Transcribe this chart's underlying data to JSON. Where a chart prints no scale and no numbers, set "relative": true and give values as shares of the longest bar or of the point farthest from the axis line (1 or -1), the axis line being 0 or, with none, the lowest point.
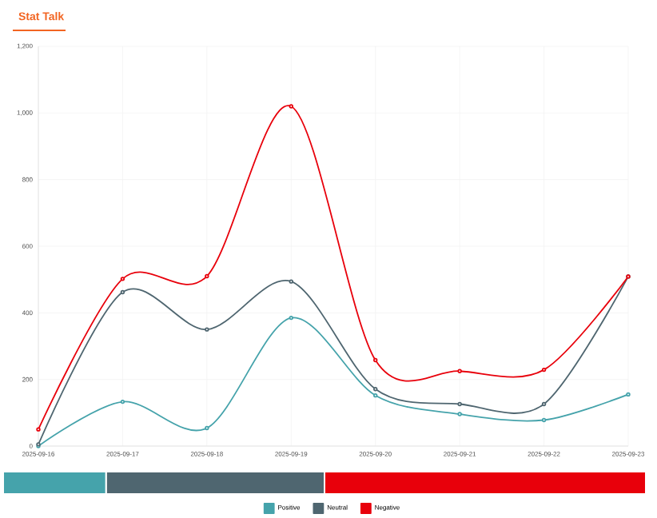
{
  "chart_data": [
    {
      "type": "line",
      "title": "Stat Talk",
      "categories": [
        "2025-09-16",
        "2025-09-17",
        "2025-09-18",
        "2025-09-19",
        "2025-09-20",
        "2025-09-21",
        "2025-09-22",
        "2025-09-23"
      ],
      "series": [
        {
          "name": "Positive",
          "color": "#45a3ab",
          "values": [
            0,
            133,
            54,
            385,
            152,
            96,
            78,
            155
          ]
        },
        {
          "name": "Neutral",
          "color": "#4f6670",
          "values": [
            5,
            462,
            350,
            494,
            171,
            126,
            126,
            509
          ]
        },
        {
          "name": "Negative",
          "color": "#e8000b",
          "values": [
            50,
            502,
            510,
            1020,
            258,
            225,
            229,
            509
          ]
        }
      ],
      "ylim": [
        0,
        1200
      ],
      "yticks": [
        0,
        200,
        400,
        600,
        800,
        {
          "value": 1000,
          "label": "1,000"
        },
        {
          "value": 1200,
          "label": "1,200"
        }
      ],
      "grid": true,
      "legend": "bottom",
      "marker": "circle",
      "line_style": "solid"
    },
    {
      "type": "bar",
      "orientation": "horizontal",
      "stacked": true,
      "relative": true,
      "categories": [
        null
      ],
      "series": [
        {
          "color": "#45a3ab",
          "values": [
            0.16
          ]
        },
        {
          "color": "#4f6670",
          "values": [
            0.34
          ]
        },
        {
          "color": "#e8000b",
          "values": [
            0.5
          ]
        }
      ]
    }
  ]
}
